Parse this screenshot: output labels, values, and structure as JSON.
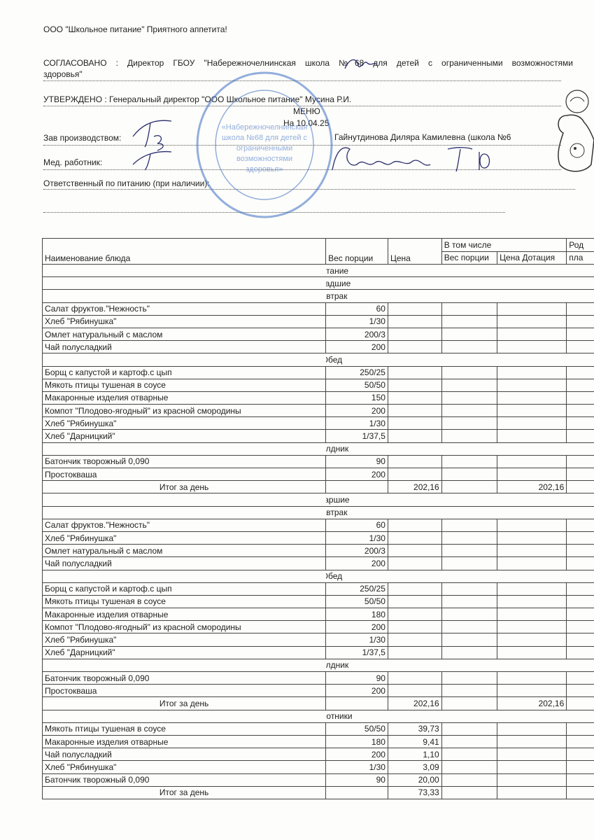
{
  "header": {
    "company_line": "ООО \"Школьное питание\" Приятного аппетита!",
    "agreed_line1": "СОГЛАСОВАНО : Директор ГБОУ \"Набережночелнинская школа №68 для детей с ограниченными возможностями",
    "agreed_line2": "здоровья\"",
    "approved_line": "УТВЕРЖДЕНО : Генеральный директор \"ООО Школьное питание\" Мусина Р.И.",
    "title": "МЕНЮ",
    "date": "На 10.04.25",
    "production_head_label": "Зав производством:",
    "production_head_name": "Гайнутдинова Диляра Камилевна (школа №6",
    "medic_label": "Мед. работник:",
    "responsible_label": "Ответственный по питанию (при наличии):"
  },
  "stamp": {
    "text": "«Набережночелнинская школа №68 для детей с ограниченными возможностями здоровья»"
  },
  "table": {
    "headers": {
      "name": "Наименование блюда",
      "weight": "Вес порции",
      "price": "Цена",
      "including": "В том числе",
      "sub_weight": "Вес порции",
      "sub_price": "Цена Дотация",
      "parent_top": "Род",
      "parent_bottom": "пла"
    },
    "rows": [
      {
        "type": "section",
        "label": "Питание"
      },
      {
        "type": "section",
        "label": "Младшие"
      },
      {
        "type": "section",
        "label": "Завтрак"
      },
      {
        "type": "item",
        "name": "Салат фруктов.\"Нежность\"",
        "weight": "60",
        "price": "",
        "sub_price": ""
      },
      {
        "type": "item",
        "name": "Хлеб \"Рябинушка\"",
        "weight": "1/30",
        "price": "",
        "sub_price": ""
      },
      {
        "type": "item",
        "name": "Омлет натуральный с маслом",
        "weight": "200/3",
        "price": "",
        "sub_price": ""
      },
      {
        "type": "item",
        "name": "Чай полусладкий",
        "weight": "200",
        "price": "",
        "sub_price": ""
      },
      {
        "type": "section",
        "label": "Обед"
      },
      {
        "type": "item",
        "name": "Борщ с капустой и картоф.с цып",
        "weight": "250/25",
        "price": "",
        "sub_price": ""
      },
      {
        "type": "item",
        "name": "Мякоть птицы тушеная в соусе",
        "weight": "50/50",
        "price": "",
        "sub_price": ""
      },
      {
        "type": "item",
        "name": "Макаронные изделия отварные",
        "weight": "150",
        "price": "",
        "sub_price": ""
      },
      {
        "type": "item",
        "name": "Компот \"Плодово-ягодный\" из красной смородины",
        "weight": "200",
        "price": "",
        "sub_price": ""
      },
      {
        "type": "item",
        "name": "Хлеб \"Рябинушка\"",
        "weight": "1/30",
        "price": "",
        "sub_price": ""
      },
      {
        "type": "item",
        "name": "Хлеб \"Дарницкий\"",
        "weight": "1/37,5",
        "price": "",
        "sub_price": ""
      },
      {
        "type": "section",
        "label": "Полдник"
      },
      {
        "type": "item",
        "name": "Батончик творожный 0,090",
        "weight": "90",
        "price": "",
        "sub_price": ""
      },
      {
        "type": "item",
        "name": "Простокваша",
        "weight": "200",
        "price": "",
        "sub_price": ""
      },
      {
        "type": "total",
        "name": "Итог за день",
        "weight": "",
        "price": "202,16",
        "sub_price": "202,16"
      },
      {
        "type": "section",
        "label": "Старшие"
      },
      {
        "type": "section",
        "label": "Завтрак"
      },
      {
        "type": "item",
        "name": "Салат фруктов.\"Нежность\"",
        "weight": "60",
        "price": "",
        "sub_price": ""
      },
      {
        "type": "item",
        "name": "Хлеб \"Рябинушка\"",
        "weight": "1/30",
        "price": "",
        "sub_price": ""
      },
      {
        "type": "item",
        "name": "Омлет натуральный с маслом",
        "weight": "200/3",
        "price": "",
        "sub_price": ""
      },
      {
        "type": "item",
        "name": "Чай полусладкий",
        "weight": "200",
        "price": "",
        "sub_price": ""
      },
      {
        "type": "section",
        "label": "Обед"
      },
      {
        "type": "item",
        "name": "Борщ с капустой и картоф.с цып",
        "weight": "250/25",
        "price": "",
        "sub_price": ""
      },
      {
        "type": "item",
        "name": "Мякоть птицы тушеная в соусе",
        "weight": "50/50",
        "price": "",
        "sub_price": ""
      },
      {
        "type": "item",
        "name": "Макаронные изделия отварные",
        "weight": "180",
        "price": "",
        "sub_price": ""
      },
      {
        "type": "item",
        "name": "Компот \"Плодово-ягодный\" из красной смородины",
        "weight": "200",
        "price": "",
        "sub_price": ""
      },
      {
        "type": "item",
        "name": "Хлеб \"Рябинушка\"",
        "weight": "1/30",
        "price": "",
        "sub_price": ""
      },
      {
        "type": "item",
        "name": "Хлеб \"Дарницкий\"",
        "weight": "1/37,5",
        "price": "",
        "sub_price": ""
      },
      {
        "type": "section",
        "label": "Полдник"
      },
      {
        "type": "item",
        "name": "Батончик творожный 0,090",
        "weight": "90",
        "price": "",
        "sub_price": ""
      },
      {
        "type": "item",
        "name": "Простокваша",
        "weight": "200",
        "price": "",
        "sub_price": ""
      },
      {
        "type": "total",
        "name": "Итог за день",
        "weight": "",
        "price": "202,16",
        "sub_price": "202,16"
      },
      {
        "type": "section",
        "label": "Работники"
      },
      {
        "type": "item",
        "name": "Мякоть птицы тушеная в соусе",
        "weight": "50/50",
        "price": "39,73",
        "sub_price": ""
      },
      {
        "type": "item",
        "name": "Макаронные изделия отварные",
        "weight": "180",
        "price": "9,41",
        "sub_price": ""
      },
      {
        "type": "item",
        "name": "Чай полусладкий",
        "weight": "200",
        "price": "1,10",
        "sub_price": ""
      },
      {
        "type": "item",
        "name": "Хлеб \"Рябинушка\"",
        "weight": "1/30",
        "price": "3,09",
        "sub_price": ""
      },
      {
        "type": "item",
        "name": "Батончик творожный 0,090",
        "weight": "90",
        "price": "20,00",
        "sub_price": ""
      },
      {
        "type": "total",
        "name": "Итог за день",
        "weight": "",
        "price": "73,33",
        "sub_price": ""
      }
    ]
  }
}
